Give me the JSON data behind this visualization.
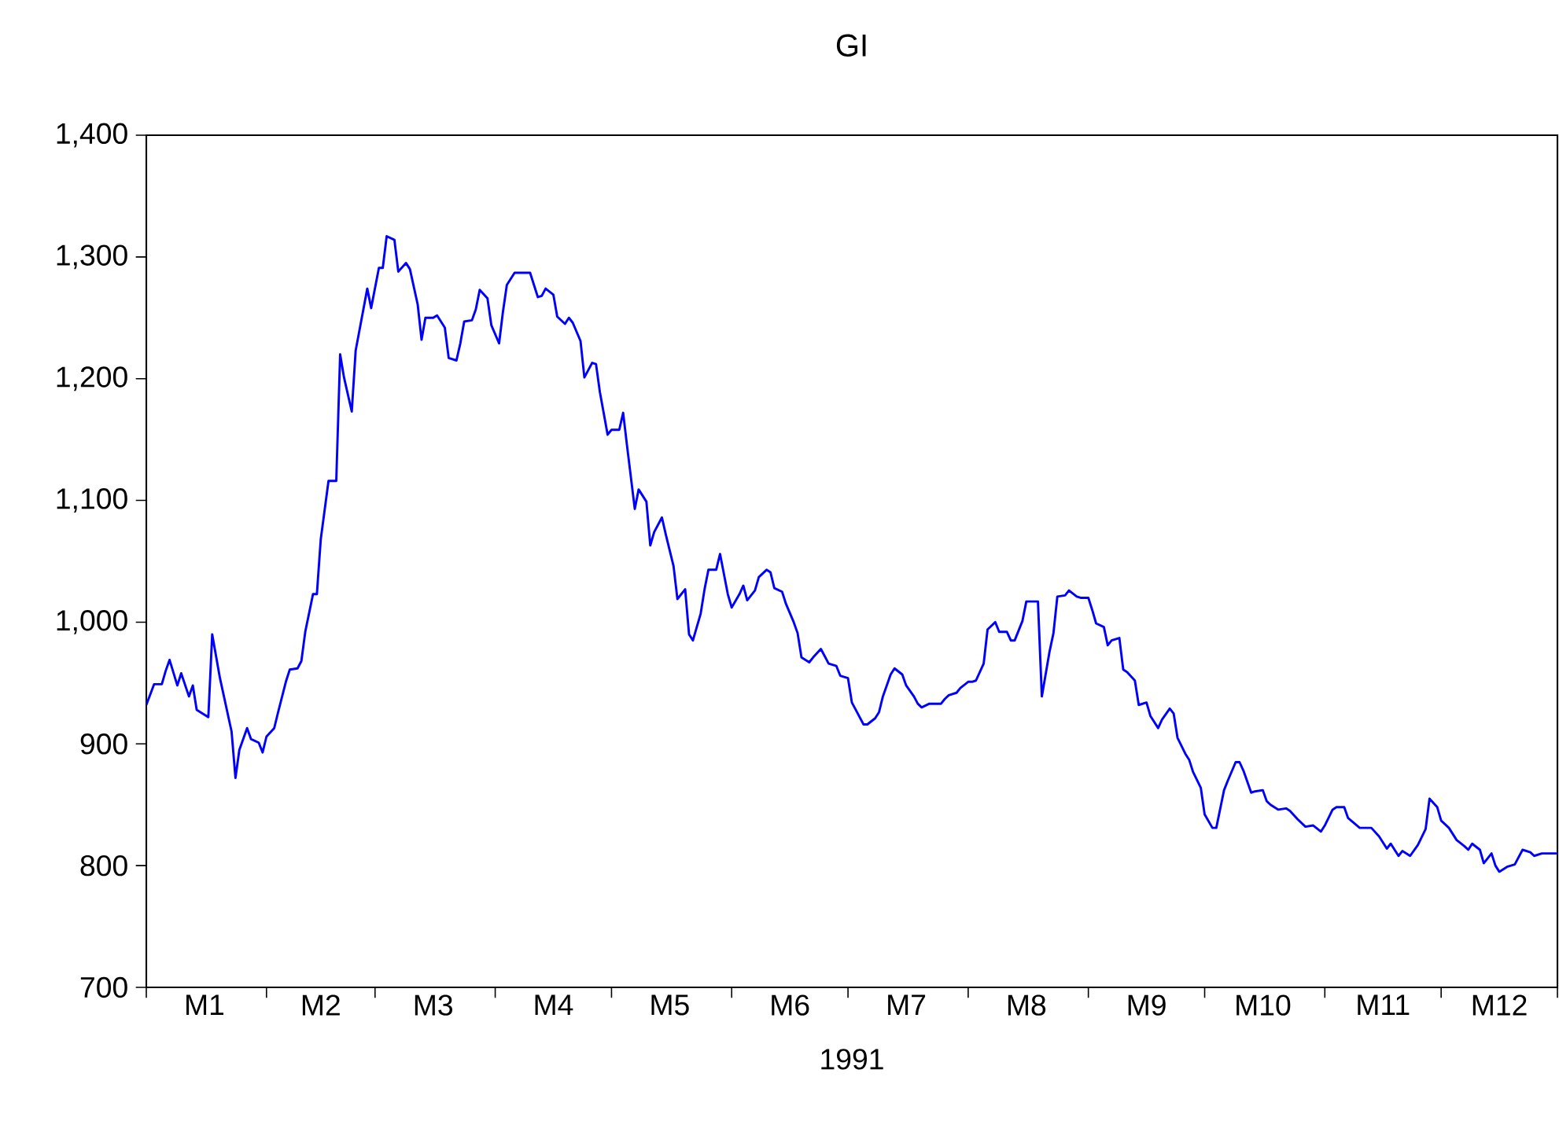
{
  "chart_data": {
    "type": "line",
    "title": "GI",
    "xlabel": "1991",
    "color": "#0000ff",
    "grid": false,
    "marker": "none",
    "line_style": "solid",
    "xlim": [
      "1991-01-01",
      "1991-12-31"
    ],
    "xticks": [
      {
        "value": "1991-01-01",
        "label": null
      },
      {
        "value": "1991-02-01",
        "label": null
      },
      {
        "value": "1991-03-01",
        "label": null
      },
      {
        "value": "1991-04-01",
        "label": null
      },
      {
        "value": "1991-05-01",
        "label": null
      },
      {
        "value": "1991-06-01",
        "label": null
      },
      {
        "value": "1991-07-01",
        "label": null
      },
      {
        "value": "1991-08-01",
        "label": null
      },
      {
        "value": "1991-09-01",
        "label": null
      },
      {
        "value": "1991-10-01",
        "label": null
      },
      {
        "value": "1991-11-01",
        "label": null
      },
      {
        "value": "1991-12-01",
        "label": null
      },
      {
        "value": "1991-12-31",
        "label": null
      },
      {
        "value": "1991-01-16",
        "label": "M1"
      },
      {
        "value": "1991-02-15",
        "label": "M2"
      },
      {
        "value": "1991-03-16",
        "label": "M3"
      },
      {
        "value": "1991-04-16",
        "label": "M4"
      },
      {
        "value": "1991-05-16",
        "label": "M5"
      },
      {
        "value": "1991-06-16",
        "label": "M6"
      },
      {
        "value": "1991-07-16",
        "label": "M7"
      },
      {
        "value": "1991-08-16",
        "label": "M8"
      },
      {
        "value": "1991-09-16",
        "label": "M9"
      },
      {
        "value": "1991-10-16",
        "label": "M10"
      },
      {
        "value": "1991-11-16",
        "label": "M11"
      },
      {
        "value": "1991-12-16",
        "label": "M12"
      }
    ],
    "ylim": [
      700,
      1400
    ],
    "yticks": [
      {
        "value": 700,
        "label": "700"
      },
      {
        "value": 800,
        "label": "800"
      },
      {
        "value": 900,
        "label": "900"
      },
      {
        "value": 1000,
        "label": "1,000"
      },
      {
        "value": 1100,
        "label": "1,100"
      },
      {
        "value": 1200,
        "label": "1,200"
      },
      {
        "value": 1300,
        "label": "1,300"
      },
      {
        "value": 1400,
        "label": "1,400"
      }
    ],
    "x": [
      "1991-01-01",
      "1991-01-03",
      "1991-01-05",
      "1991-01-06",
      "1991-01-07",
      "1991-01-09",
      "1991-01-10",
      "1991-01-12",
      "1991-01-13",
      "1991-01-14",
      "1991-01-17",
      "1991-01-18",
      "1991-01-20",
      "1991-01-23",
      "1991-01-24",
      "1991-01-25",
      "1991-01-27",
      "1991-01-28",
      "1991-01-30",
      "1991-01-31",
      "1991-02-01",
      "1991-02-03",
      "1991-02-04",
      "1991-02-06",
      "1991-02-07",
      "1991-02-09",
      "1991-02-10",
      "1991-02-11",
      "1991-02-13",
      "1991-02-14",
      "1991-02-15",
      "1991-02-17",
      "1991-02-19",
      "1991-02-20",
      "1991-02-21",
      "1991-02-23",
      "1991-02-24",
      "1991-02-25",
      "1991-02-27",
      "1991-02-28",
      "1991-03-02",
      "1991-03-03",
      "1991-03-04",
      "1991-03-06",
      "1991-03-07",
      "1991-03-09",
      "1991-03-10",
      "1991-03-12",
      "1991-03-13",
      "1991-03-14",
      "1991-03-16",
      "1991-03-17",
      "1991-03-19",
      "1991-03-20",
      "1991-03-22",
      "1991-03-23",
      "1991-03-24",
      "1991-03-26",
      "1991-03-27",
      "1991-03-28",
      "1991-03-30",
      "1991-03-31",
      "1991-04-02",
      "1991-04-03",
      "1991-04-04",
      "1991-04-06",
      "1991-04-10",
      "1991-04-12",
      "1991-04-13",
      "1991-04-14",
      "1991-04-16",
      "1991-04-17",
      "1991-04-19",
      "1991-04-20",
      "1991-04-21",
      "1991-04-23",
      "1991-04-24",
      "1991-04-26",
      "1991-04-27",
      "1991-04-28",
      "1991-04-30",
      "1991-05-01",
      "1991-05-03",
      "1991-05-04",
      "1991-05-05",
      "1991-05-07",
      "1991-05-08",
      "1991-05-10",
      "1991-05-11",
      "1991-05-12",
      "1991-05-14",
      "1991-05-15",
      "1991-05-17",
      "1991-05-18",
      "1991-05-20",
      "1991-05-21",
      "1991-05-22",
      "1991-05-24",
      "1991-05-25",
      "1991-05-26",
      "1991-05-28",
      "1991-05-29",
      "1991-05-31",
      "1991-06-01",
      "1991-06-03",
      "1991-06-04",
      "1991-06-05",
      "1991-06-07",
      "1991-06-08",
      "1991-06-10",
      "1991-06-11",
      "1991-06-12",
      "1991-06-14",
      "1991-06-15",
      "1991-06-17",
      "1991-06-18",
      "1991-06-19",
      "1991-06-21",
      "1991-06-22",
      "1991-06-24",
      "1991-06-25",
      "1991-06-26",
      "1991-06-28",
      "1991-06-29",
      "1991-07-01",
      "1991-07-02",
      "1991-07-03",
      "1991-07-05",
      "1991-07-06",
      "1991-07-08",
      "1991-07-09",
      "1991-07-10",
      "1991-07-12",
      "1991-07-13",
      "1991-07-15",
      "1991-07-16",
      "1991-07-18",
      "1991-07-19",
      "1991-07-20",
      "1991-07-22",
      "1991-07-25",
      "1991-07-26",
      "1991-07-27",
      "1991-07-29",
      "1991-07-30",
      "1991-08-01",
      "1991-08-02",
      "1991-08-03",
      "1991-08-05",
      "1991-08-06",
      "1991-08-08",
      "1991-08-09",
      "1991-08-11",
      "1991-08-12",
      "1991-08-13",
      "1991-08-15",
      "1991-08-16",
      "1991-08-19",
      "1991-08-20",
      "1991-08-22",
      "1991-08-23",
      "1991-08-24",
      "1991-08-26",
      "1991-08-27",
      "1991-08-29",
      "1991-08-30",
      "1991-09-01",
      "1991-09-02",
      "1991-09-03",
      "1991-09-05",
      "1991-09-06",
      "1991-09-07",
      "1991-09-09",
      "1991-09-10",
      "1991-09-11",
      "1991-09-13",
      "1991-09-14",
      "1991-09-16",
      "1991-09-17",
      "1991-09-19",
      "1991-09-20",
      "1991-09-22",
      "1991-09-23",
      "1991-09-24",
      "1991-09-26",
      "1991-09-27",
      "1991-09-28",
      "1991-09-30",
      "1991-10-01",
      "1991-10-03",
      "1991-10-04",
      "1991-10-06",
      "1991-10-07",
      "1991-10-09",
      "1991-10-10",
      "1991-10-11",
      "1991-10-13",
      "1991-10-14",
      "1991-10-16",
      "1991-10-17",
      "1991-10-18",
      "1991-10-20",
      "1991-10-22",
      "1991-10-23",
      "1991-10-25",
      "1991-10-27",
      "1991-10-29",
      "1991-10-31",
      "1991-11-01",
      "1991-11-03",
      "1991-11-04",
      "1991-11-06",
      "1991-11-07",
      "1991-11-10",
      "1991-11-12",
      "1991-11-13",
      "1991-11-15",
      "1991-11-17",
      "1991-11-18",
      "1991-11-20",
      "1991-11-21",
      "1991-11-23",
      "1991-11-25",
      "1991-11-27",
      "1991-11-28",
      "1991-11-30",
      "1991-12-01",
      "1991-12-03",
      "1991-12-05",
      "1991-12-07",
      "1991-12-08",
      "1991-12-09",
      "1991-12-11",
      "1991-12-12",
      "1991-12-14",
      "1991-12-15",
      "1991-12-16",
      "1991-12-18",
      "1991-12-20",
      "1991-12-22",
      "1991-12-24",
      "1991-12-25",
      "1991-12-27",
      "1991-12-31"
    ],
    "values": [
      932,
      949,
      949,
      960,
      969,
      948,
      958,
      939,
      948,
      928,
      922,
      990,
      954,
      910,
      872,
      895,
      913,
      904,
      901,
      893,
      906,
      913,
      926,
      951,
      961,
      962,
      968,
      992,
      1023,
      1023,
      1068,
      1116,
      1116,
      1220,
      1201,
      1173,
      1223,
      1240,
      1274,
      1258,
      1291,
      1291,
      1317,
      1314,
      1288,
      1295,
      1290,
      1261,
      1232,
      1250,
      1250,
      1252,
      1242,
      1217,
      1215,
      1229,
      1247,
      1248,
      1257,
      1273,
      1266,
      1244,
      1229,
      1255,
      1277,
      1287,
      1287,
      1267,
      1268,
      1274,
      1269,
      1251,
      1245,
      1250,
      1246,
      1231,
      1201,
      1213,
      1212,
      1189,
      1154,
      1158,
      1158,
      1172,
      1145,
      1093,
      1109,
      1099,
      1063,
      1074,
      1086,
      1072,
      1046,
      1019,
      1027,
      990,
      985,
      1007,
      1027,
      1043,
      1043,
      1056,
      1023,
      1012,
      1023,
      1030,
      1018,
      1026,
      1037,
      1043,
      1041,
      1028,
      1025,
      1015,
      1000,
      991,
      971,
      967,
      971,
      978,
      972,
      966,
      964,
      956,
      954,
      934,
      928,
      916,
      916,
      921,
      926,
      939,
      957,
      962,
      957,
      948,
      939,
      933,
      930,
      933,
      933,
      937,
      940,
      942,
      946,
      951,
      951,
      952,
      966,
      994,
      1000,
      992,
      992,
      985,
      985,
      1001,
      1017,
      1017,
      939,
      976,
      991,
      1021,
      1022,
      1026,
      1021,
      1020,
      1020,
      1010,
      999,
      996,
      981,
      985,
      987,
      961,
      959,
      952,
      932,
      934,
      923,
      913,
      920,
      929,
      925,
      905,
      892,
      887,
      877,
      864,
      842,
      831,
      831,
      862,
      870,
      885,
      885,
      878,
      860,
      861,
      862,
      853,
      850,
      846,
      847,
      845,
      838,
      832,
      833,
      828,
      833,
      846,
      848,
      848,
      839,
      831,
      831,
      831,
      824,
      814,
      818,
      808,
      812,
      808,
      817,
      830,
      855,
      848,
      837,
      831,
      821,
      816,
      813,
      818,
      813,
      802,
      810,
      800,
      795,
      799,
      801,
      813,
      811,
      808,
      810,
      810
    ]
  }
}
